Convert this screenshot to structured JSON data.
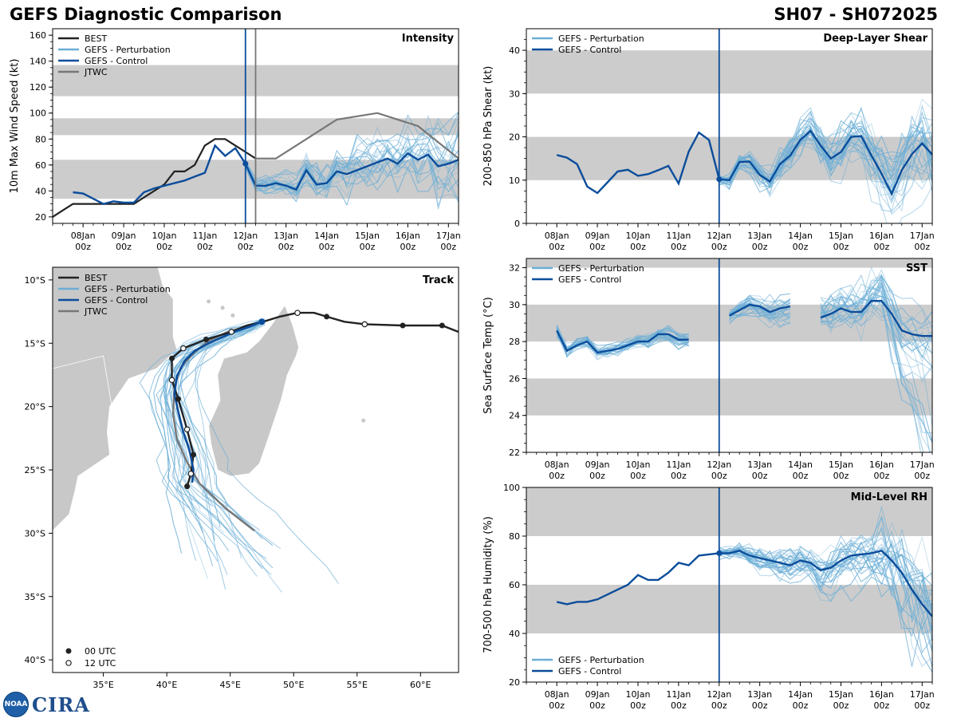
{
  "header": {
    "title": "GEFS Diagnostic Comparison",
    "storm": "SH07 - SH072025"
  },
  "logo": {
    "noaa_text": "NOAA",
    "cira_text": "CIRA"
  },
  "colors": {
    "best": "#222222",
    "perturbation": "#6baed6",
    "control": "#0b4d9b",
    "jtwc": "#777777",
    "band": "#cccccc",
    "land": "#c8c8c8"
  },
  "legend_labels": {
    "best": "BEST",
    "perturbation": "GEFS - Perturbation",
    "control": "GEFS - Control",
    "jtwc": "JTWC",
    "utc00": "00 UTC",
    "utc12": "12 UTC"
  },
  "time_ticks": [
    {
      "label": "08Jan",
      "sub": "00z"
    },
    {
      "label": "09Jan",
      "sub": "00z"
    },
    {
      "label": "10Jan",
      "sub": "00z"
    },
    {
      "label": "11Jan",
      "sub": "00z"
    },
    {
      "label": "12Jan",
      "sub": "00z"
    },
    {
      "label": "13Jan",
      "sub": "00z"
    },
    {
      "label": "14Jan",
      "sub": "00z"
    },
    {
      "label": "15Jan",
      "sub": "00z"
    },
    {
      "label": "16Jan",
      "sub": "00z"
    },
    {
      "label": "17Jan",
      "sub": "00z"
    }
  ],
  "chart_data": [
    {
      "id": "intensity",
      "type": "line",
      "title": "Intensity",
      "ylabel": "10m Max Wind Speed (kt)",
      "xlim": [
        -0.75,
        9.25
      ],
      "ylim": [
        15,
        165
      ],
      "yticks": [
        20,
        40,
        60,
        80,
        100,
        120,
        140,
        160
      ],
      "bands": [
        [
          34,
          64
        ],
        [
          83,
          96
        ],
        [
          113,
          137
        ]
      ],
      "init_day": 4.0,
      "jtwc_line_day": 4.25,
      "series": [
        {
          "name": "BEST",
          "kind": "best",
          "x": [
            -0.75,
            -0.5,
            -0.25,
            0,
            0.25,
            0.5,
            0.75,
            1,
            1.25,
            1.5,
            1.75,
            2,
            2.25,
            2.5,
            2.75,
            3,
            3.25,
            3.5,
            3.75,
            4,
            4.25
          ],
          "y": [
            20,
            25,
            30,
            30,
            30,
            30,
            30,
            30,
            30,
            35,
            40,
            45,
            55,
            55,
            60,
            75,
            80,
            80,
            75,
            70,
            65
          ]
        },
        {
          "name": "GEFS - Control",
          "kind": "control",
          "x": [
            -0.25,
            0,
            0.25,
            0.5,
            0.75,
            1,
            1.25,
            1.5,
            1.75,
            2,
            2.25,
            2.5,
            2.75,
            3,
            3.25,
            3.5,
            3.75,
            4,
            4.25,
            4.5,
            4.75,
            5,
            5.25,
            5.5,
            5.75,
            6,
            6.25,
            6.5,
            6.75,
            7,
            7.25,
            7.5,
            7.75,
            8,
            8.25,
            8.5,
            8.75,
            9,
            9.25
          ],
          "y": [
            39,
            38,
            34,
            30,
            32,
            31,
            31,
            39,
            42,
            44,
            46,
            48,
            51,
            54,
            75,
            67,
            73,
            61,
            44,
            44,
            46,
            44,
            41,
            56,
            45,
            46,
            55,
            53,
            56,
            59,
            62,
            65,
            61,
            69,
            64,
            68,
            59,
            61,
            64
          ]
        },
        {
          "name": "JTWC",
          "kind": "jtwc",
          "x": [
            4.25,
            4.75,
            6.25,
            7.25,
            8.25,
            9.25
          ],
          "y": [
            65,
            65,
            95,
            100,
            90,
            65
          ]
        }
      ],
      "markers": [
        {
          "x": 4.0,
          "y": 61
        }
      ]
    },
    {
      "id": "shear",
      "type": "line",
      "title": "Deep-Layer Shear",
      "ylabel": "200-850 hPa Shear (kt)",
      "xlim": [
        -0.75,
        9.25
      ],
      "ylim": [
        0,
        45
      ],
      "yticks": [
        0,
        10,
        20,
        30,
        40
      ],
      "bands": [
        [
          10,
          20
        ],
        [
          30,
          40
        ]
      ],
      "init_day": 4.0,
      "series": [
        {
          "name": "GEFS - Control",
          "kind": "control",
          "x": [
            0,
            0.25,
            0.5,
            0.75,
            1,
            1.25,
            1.5,
            1.75,
            2,
            2.25,
            2.5,
            2.75,
            3,
            3.25,
            3.5,
            3.75,
            4,
            4.25,
            4.5,
            4.75,
            5,
            5.25,
            5.5,
            5.75,
            6,
            6.25,
            6.5,
            6.75,
            7,
            7.25,
            7.5,
            7.75,
            8,
            8.25,
            8.5,
            8.75,
            9,
            9.25
          ],
          "y": [
            15.8,
            15.2,
            13.7,
            8.5,
            7,
            9.5,
            12,
            12.4,
            11,
            11.4,
            12.3,
            13.3,
            9.2,
            16.6,
            21,
            19.3,
            10.2,
            10,
            14.2,
            14.3,
            11.2,
            9.7,
            13.7,
            15.7,
            19.3,
            21.4,
            18,
            15,
            16.5,
            20,
            20.2,
            15.7,
            11.5,
            6.8,
            12.3,
            16,
            18.5,
            15.9
          ]
        }
      ],
      "markers": [
        {
          "x": 4.0,
          "y": 10.2
        }
      ]
    },
    {
      "id": "track",
      "type": "map",
      "title": "Track",
      "lon_range": [
        31,
        63
      ],
      "lat_range": [
        -41,
        -9
      ],
      "lon_ticks": [
        "35°E",
        "40°E",
        "45°E",
        "50°E",
        "55°E",
        "60°E"
      ],
      "lon_tick_values": [
        35,
        40,
        45,
        50,
        55,
        60
      ],
      "lat_ticks": [
        "10°S",
        "15°S",
        "20°S",
        "25°S",
        "30°S",
        "35°S",
        "40°S"
      ],
      "lat_tick_values": [
        -10,
        -15,
        -20,
        -25,
        -30,
        -35,
        -40
      ],
      "best_track": [
        [
          63,
          -14.1
        ],
        [
          61.7,
          -13.6
        ],
        [
          58.6,
          -13.6
        ],
        [
          55.6,
          -13.5
        ],
        [
          54,
          -13.3
        ],
        [
          52.6,
          -12.9
        ],
        [
          51.6,
          -12.6
        ],
        [
          50.3,
          -12.6
        ],
        [
          48.9,
          -12.9
        ],
        [
          47.6,
          -13.3
        ],
        [
          46.3,
          -13.6
        ],
        [
          45.1,
          -14.1
        ],
        [
          43.1,
          -14.7
        ],
        [
          42.1,
          -15.1
        ],
        [
          41.3,
          -15.4
        ],
        [
          40.4,
          -16.2
        ],
        [
          40.4,
          -17.9
        ],
        [
          40.9,
          -19.4
        ],
        [
          41.6,
          -21.8
        ],
        [
          42.1,
          -23.8
        ],
        [
          41.9,
          -25.3
        ],
        [
          41.6,
          -26.3
        ]
      ],
      "best_00utc": [
        [
          61.7,
          -13.6
        ],
        [
          58.6,
          -13.6
        ],
        [
          52.6,
          -12.9
        ],
        [
          43.1,
          -14.7
        ],
        [
          40.4,
          -16.2
        ],
        [
          40.9,
          -19.4
        ],
        [
          42.1,
          -23.8
        ],
        [
          41.6,
          -26.3
        ]
      ],
      "best_12utc": [
        [
          55.6,
          -13.5
        ],
        [
          50.3,
          -12.6
        ],
        [
          45.1,
          -14.1
        ],
        [
          41.3,
          -15.4
        ],
        [
          40.4,
          -17.9
        ],
        [
          41.6,
          -21.8
        ],
        [
          41.9,
          -25.3
        ]
      ],
      "control_track": [
        [
          47.5,
          -13.3
        ],
        [
          46.5,
          -13.7
        ],
        [
          45.3,
          -14.1
        ],
        [
          44.2,
          -14.6
        ],
        [
          43.3,
          -15
        ],
        [
          42.2,
          -15.6
        ],
        [
          41.4,
          -16.4
        ],
        [
          40.8,
          -17.6
        ],
        [
          40.6,
          -19
        ],
        [
          40.9,
          -20.4
        ],
        [
          41.3,
          -22
        ],
        [
          41.8,
          -23.5
        ],
        [
          42.1,
          -25
        ],
        [
          42,
          -26
        ]
      ],
      "jtwc_track": [
        [
          46.2,
          -13.7
        ],
        [
          44.8,
          -14.1
        ],
        [
          43.3,
          -14.8
        ],
        [
          42.1,
          -15.8
        ],
        [
          41.1,
          -16.9
        ],
        [
          40.6,
          -18.4
        ],
        [
          40.5,
          -20.6
        ],
        [
          40.8,
          -22.6
        ],
        [
          41.6,
          -24.4
        ],
        [
          42.6,
          -26.1
        ],
        [
          44.6,
          -28
        ],
        [
          46.9,
          -29.8
        ]
      ]
    },
    {
      "id": "sst",
      "type": "line",
      "title": "SST",
      "ylabel": "Sea Surface Temp (°C)",
      "xlim": [
        -0.75,
        9.25
      ],
      "ylim": [
        22,
        32.5
      ],
      "yticks": [
        22,
        24,
        26,
        28,
        30,
        32
      ],
      "bands": [
        [
          24,
          26
        ],
        [
          28,
          30
        ],
        [
          32,
          34
        ]
      ],
      "init_day": 4.0,
      "series": [
        {
          "name": "GEFS - Control",
          "kind": "control",
          "x": [
            0,
            0.25,
            0.5,
            0.75,
            1,
            1.25,
            1.5,
            1.75,
            2,
            2.25,
            2.5,
            2.75,
            3,
            3.25
          ],
          "y": [
            28.6,
            27.5,
            27.8,
            28.0,
            27.4,
            27.5,
            27.6,
            27.8,
            28.0,
            28.0,
            28.4,
            28.4,
            28.1,
            28.1
          ]
        },
        {
          "name": "GEFS - Control",
          "kind": "control",
          "x": [
            4.25,
            4.5,
            4.75,
            5,
            5.25,
            5.5,
            5.75
          ],
          "y": [
            29.4,
            29.7,
            30.0,
            29.9,
            29.6,
            29.8,
            29.9
          ]
        },
        {
          "name": "GEFS - Control",
          "kind": "control",
          "x": [
            6.5,
            6.75,
            7,
            7.25,
            7.5,
            7.75,
            8,
            8.25,
            8.5,
            8.75,
            9,
            9.25
          ],
          "y": [
            29.3,
            29.5,
            29.8,
            29.6,
            29.6,
            30.2,
            30.2,
            29.5,
            28.6,
            28.4,
            28.3,
            28.3
          ]
        }
      ]
    },
    {
      "id": "rh",
      "type": "line",
      "title": "Mid-Level RH",
      "ylabel": "700-500 hPa Humidity (%)",
      "xlim": [
        -0.75,
        9.25
      ],
      "ylim": [
        20,
        100
      ],
      "yticks": [
        20,
        40,
        60,
        80,
        100
      ],
      "bands": [
        [
          40,
          60
        ],
        [
          80,
          100
        ]
      ],
      "init_day": 4.0,
      "series": [
        {
          "name": "GEFS - Control",
          "kind": "control",
          "x": [
            0,
            0.25,
            0.5,
            0.75,
            1,
            1.25,
            1.5,
            1.75,
            2,
            2.25,
            2.5,
            2.75,
            3,
            3.25,
            3.5,
            3.75,
            4,
            4.25,
            4.5,
            4.75,
            5,
            5.25,
            5.5,
            5.75,
            6,
            6.25,
            6.5,
            6.75,
            7,
            7.25,
            7.5,
            7.75,
            8,
            8.25,
            8.5,
            8.75,
            9,
            9.25
          ],
          "y": [
            53,
            52,
            53,
            53,
            54,
            56,
            58,
            60,
            64,
            62,
            62,
            65,
            69,
            68,
            72,
            72.5,
            73,
            73,
            74,
            72,
            71,
            70,
            69,
            68,
            70,
            69,
            66,
            67,
            70,
            72,
            72.5,
            73,
            74,
            70,
            65,
            58,
            52,
            47
          ]
        }
      ],
      "markers": [
        {
          "x": 4.0,
          "y": 73
        }
      ]
    }
  ]
}
